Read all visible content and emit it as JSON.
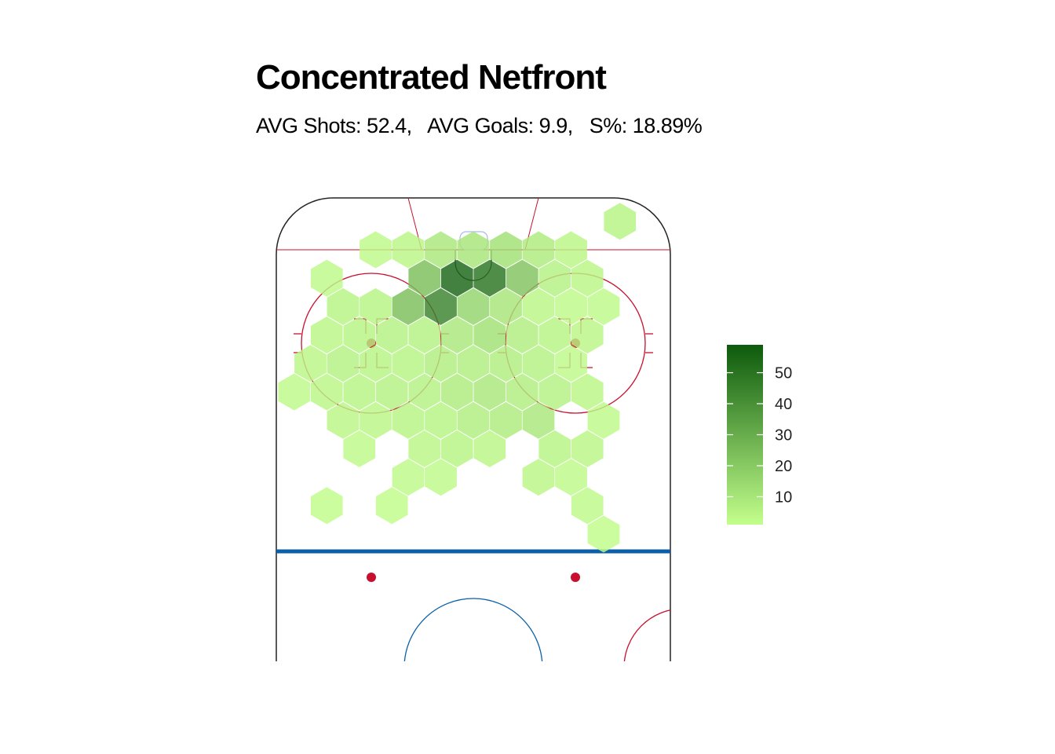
{
  "chart_data": {
    "type": "heatmap",
    "title": "Concentrated Netfront",
    "subtitle": "AVG Shots: 52.4,   AVG Goals: 9.9,   S%: 18.89%",
    "colorbar": {
      "ticks": [
        10,
        20,
        30,
        40,
        50
      ],
      "range": [
        1,
        59
      ],
      "low_color": "#c3ff8c",
      "high_color": "#0d5a0d"
    },
    "rink_colors": {
      "board": "#222222",
      "red": "#c8102e",
      "blue": "#0a5fa8",
      "crease": "#a9b8e8"
    },
    "grid": false,
    "legend_position": "right",
    "hex_cells": [
      {
        "col": 4,
        "row": -1,
        "value": 5
      },
      {
        "col": -3,
        "row": 0,
        "value": 3
      },
      {
        "col": -2,
        "row": 0,
        "value": 4
      },
      {
        "col": -1,
        "row": 0,
        "value": 9
      },
      {
        "col": 0,
        "row": 0,
        "value": 10
      },
      {
        "col": 1,
        "row": 0,
        "value": 12
      },
      {
        "col": 2,
        "row": 0,
        "value": 8
      },
      {
        "col": 3,
        "row": 0,
        "value": 4
      },
      {
        "col": -5,
        "row": 1,
        "value": 3
      },
      {
        "col": -2,
        "row": 1,
        "value": 24
      },
      {
        "col": -1,
        "row": 1,
        "value": 55
      },
      {
        "col": 0,
        "row": 1,
        "value": 50
      },
      {
        "col": 1,
        "row": 1,
        "value": 22
      },
      {
        "col": 2,
        "row": 1,
        "value": 6
      },
      {
        "col": 3,
        "row": 1,
        "value": 4
      },
      {
        "col": -4,
        "row": 2,
        "value": 5
      },
      {
        "col": -3,
        "row": 2,
        "value": 5
      },
      {
        "col": -2,
        "row": 2,
        "value": 24
      },
      {
        "col": -1,
        "row": 2,
        "value": 45
      },
      {
        "col": 0,
        "row": 2,
        "value": 16
      },
      {
        "col": 1,
        "row": 2,
        "value": 10
      },
      {
        "col": 2,
        "row": 2,
        "value": 4
      },
      {
        "col": 3,
        "row": 2,
        "value": 3
      },
      {
        "col": 4,
        "row": 2,
        "value": 3
      },
      {
        "col": -5,
        "row": 3,
        "value": 4
      },
      {
        "col": -4,
        "row": 3,
        "value": 5
      },
      {
        "col": -3,
        "row": 3,
        "value": 6
      },
      {
        "col": -2,
        "row": 3,
        "value": 6
      },
      {
        "col": -1,
        "row": 3,
        "value": 9
      },
      {
        "col": 0,
        "row": 3,
        "value": 12
      },
      {
        "col": 1,
        "row": 3,
        "value": 7
      },
      {
        "col": 2,
        "row": 3,
        "value": 5
      },
      {
        "col": 3,
        "row": 3,
        "value": 4
      },
      {
        "col": -5,
        "row": 4,
        "value": 4
      },
      {
        "col": -4,
        "row": 4,
        "value": 6
      },
      {
        "col": -3,
        "row": 4,
        "value": 5
      },
      {
        "col": -2,
        "row": 4,
        "value": 5
      },
      {
        "col": -1,
        "row": 4,
        "value": 7
      },
      {
        "col": 0,
        "row": 4,
        "value": 7
      },
      {
        "col": 1,
        "row": 4,
        "value": 7
      },
      {
        "col": 2,
        "row": 4,
        "value": 6
      },
      {
        "col": 3,
        "row": 4,
        "value": 3
      },
      {
        "col": -6,
        "row": 5,
        "value": 3
      },
      {
        "col": -5,
        "row": 5,
        "value": 4
      },
      {
        "col": -4,
        "row": 5,
        "value": 5
      },
      {
        "col": -3,
        "row": 5,
        "value": 6
      },
      {
        "col": -2,
        "row": 5,
        "value": 6
      },
      {
        "col": -1,
        "row": 5,
        "value": 8
      },
      {
        "col": 0,
        "row": 5,
        "value": 9
      },
      {
        "col": 1,
        "row": 5,
        "value": 7
      },
      {
        "col": 2,
        "row": 5,
        "value": 6
      },
      {
        "col": 3,
        "row": 5,
        "value": 4
      },
      {
        "col": -4,
        "row": 6,
        "value": 4
      },
      {
        "col": -3,
        "row": 6,
        "value": 4
      },
      {
        "col": -2,
        "row": 6,
        "value": 5
      },
      {
        "col": -1,
        "row": 6,
        "value": 5
      },
      {
        "col": 0,
        "row": 6,
        "value": 7
      },
      {
        "col": 1,
        "row": 6,
        "value": 8
      },
      {
        "col": 2,
        "row": 6,
        "value": 9
      },
      {
        "col": 4,
        "row": 6,
        "value": 3
      },
      {
        "col": -4,
        "row": 7,
        "value": 3
      },
      {
        "col": -2,
        "row": 7,
        "value": 4
      },
      {
        "col": -1,
        "row": 7,
        "value": 5
      },
      {
        "col": 0,
        "row": 7,
        "value": 4
      },
      {
        "col": 2,
        "row": 7,
        "value": 5
      },
      {
        "col": 3,
        "row": 7,
        "value": 4
      },
      {
        "col": -2,
        "row": 8,
        "value": 3
      },
      {
        "col": -1,
        "row": 8,
        "value": 3
      },
      {
        "col": 2,
        "row": 8,
        "value": 4
      },
      {
        "col": 3,
        "row": 8,
        "value": 3
      },
      {
        "col": -5,
        "row": 9,
        "value": 2
      },
      {
        "col": -3,
        "row": 9,
        "value": 2
      },
      {
        "col": 3,
        "row": 9,
        "value": 3
      },
      {
        "col": 4,
        "row": 10,
        "value": 2
      }
    ]
  }
}
